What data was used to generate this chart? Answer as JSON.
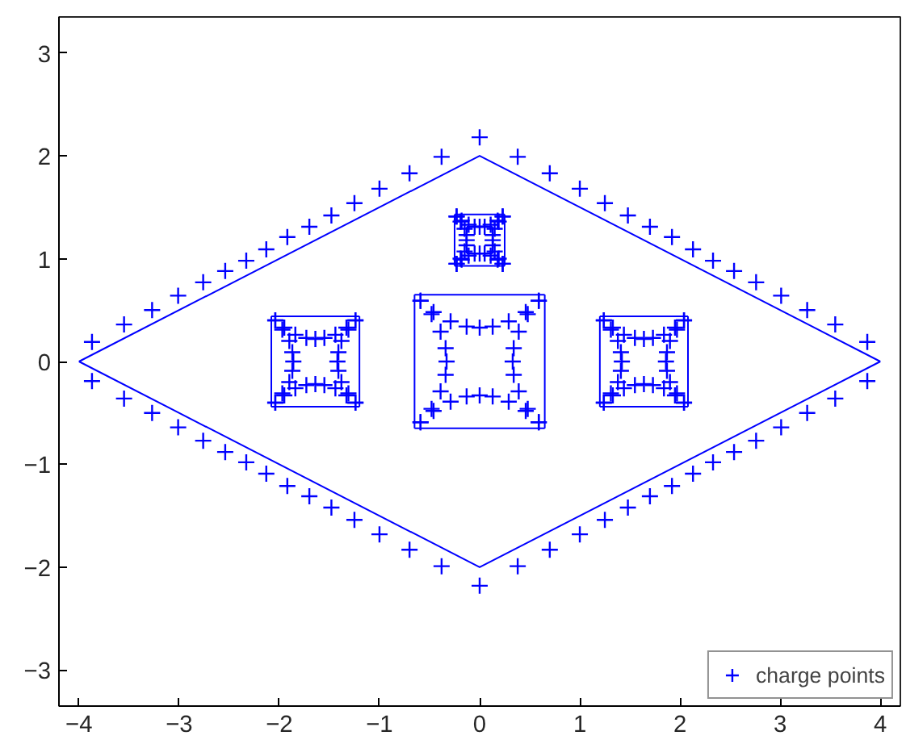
{
  "chart_data": {
    "type": "scatter",
    "xlim": [
      -4.2,
      4.2
    ],
    "ylim": [
      -3.35,
      3.35
    ],
    "xticks": [
      -4,
      -3,
      -2,
      -1,
      0,
      1,
      2,
      3,
      4
    ],
    "yticks": [
      -3,
      -2,
      -1,
      0,
      1,
      2,
      3
    ],
    "legend": "bottom right",
    "marker": "cross",
    "series": [
      {
        "type": "line",
        "marker": "none",
        "color": "#0000ff",
        "x": [
          -4,
          0,
          4
        ],
        "values": [
          0,
          2,
          0
        ]
      },
      {
        "type": "line",
        "marker": "none",
        "color": "#0000ff",
        "x": [
          -4,
          0,
          4
        ],
        "values": [
          0,
          -2,
          0
        ]
      },
      {
        "type": "line",
        "marker": "none",
        "color": "#0000ff",
        "x": [
          -0.65,
          0.65
        ],
        "values": [
          0.65,
          0.65
        ]
      },
      {
        "type": "line",
        "marker": "none",
        "color": "#0000ff",
        "x": [
          -0.65,
          0.65
        ],
        "values": [
          -0.65,
          -0.65
        ]
      },
      {
        "type": "line",
        "marker": "none",
        "color": "#0000ff",
        "x": [
          -0.65,
          -0.65
        ],
        "values": [
          -0.65,
          0.65
        ]
      },
      {
        "type": "line",
        "marker": "none",
        "color": "#0000ff",
        "x": [
          0.65,
          0.65
        ],
        "values": [
          -0.65,
          0.65
        ]
      },
      {
        "type": "line",
        "marker": "none",
        "color": "#0000ff",
        "x": [
          -2.08,
          -1.2
        ],
        "values": [
          0.44,
          0.44
        ]
      },
      {
        "type": "line",
        "marker": "none",
        "color": "#0000ff",
        "x": [
          -2.08,
          -1.2
        ],
        "values": [
          -0.44,
          -0.44
        ]
      },
      {
        "type": "line",
        "marker": "none",
        "color": "#0000ff",
        "x": [
          -2.08,
          -2.08
        ],
        "values": [
          -0.44,
          0.44
        ]
      },
      {
        "type": "line",
        "marker": "none",
        "color": "#0000ff",
        "x": [
          -1.2,
          -1.2
        ],
        "values": [
          -0.44,
          0.44
        ]
      },
      {
        "type": "line",
        "marker": "none",
        "color": "#0000ff",
        "x": [
          1.2,
          2.08
        ],
        "values": [
          0.44,
          0.44
        ]
      },
      {
        "type": "line",
        "marker": "none",
        "color": "#0000ff",
        "x": [
          1.2,
          2.08
        ],
        "values": [
          -0.44,
          -0.44
        ]
      },
      {
        "type": "line",
        "marker": "none",
        "color": "#0000ff",
        "x": [
          1.2,
          1.2
        ],
        "values": [
          -0.44,
          0.44
        ]
      },
      {
        "type": "line",
        "marker": "none",
        "color": "#0000ff",
        "x": [
          2.08,
          2.08
        ],
        "values": [
          -0.44,
          0.44
        ]
      },
      {
        "type": "line",
        "marker": "none",
        "color": "#0000ff",
        "x": [
          -0.25,
          0.25
        ],
        "values": [
          1.43,
          1.43
        ]
      },
      {
        "type": "line",
        "marker": "none",
        "color": "#0000ff",
        "x": [
          -0.25,
          0.25
        ],
        "values": [
          0.93,
          0.93
        ]
      },
      {
        "type": "line",
        "marker": "none",
        "color": "#0000ff",
        "x": [
          -0.25,
          -0.25
        ],
        "values": [
          0.93,
          1.43
        ]
      },
      {
        "type": "line",
        "marker": "none",
        "color": "#0000ff",
        "x": [
          0.25,
          0.25
        ],
        "values": [
          0.93,
          1.43
        ]
      },
      {
        "name": "charge points",
        "color": "#0000ff",
        "x": [
          -3.87,
          -3.55,
          -3.27,
          -3.01,
          -2.76,
          -2.54,
          -2.33,
          -2.13,
          -1.92,
          -1.7,
          -1.48,
          -1.25,
          -1.0,
          -0.7,
          -0.38,
          0,
          0.38,
          0.7,
          1.0,
          1.25,
          1.48,
          1.7,
          1.92,
          2.13,
          2.33,
          2.54,
          2.76,
          3.01,
          3.27,
          3.55,
          3.87,
          3.87,
          3.55,
          3.27,
          3.01,
          2.76,
          2.54,
          2.33,
          2.13,
          1.92,
          1.7,
          1.48,
          1.25,
          1.0,
          0.7,
          0.38,
          0,
          -0.38,
          -0.7,
          -1.0,
          -1.25,
          -1.48,
          -1.7,
          -1.92,
          -2.13,
          -2.33,
          -2.54,
          -2.76,
          -3.01,
          -3.27,
          -3.55,
          -3.87,
          -0.59,
          -0.46,
          -0.29,
          -0.13,
          0,
          0.13,
          0.29,
          0.46,
          0.59,
          -0.59,
          -0.46,
          -0.29,
          -0.13,
          0,
          0.13,
          0.29,
          0.46,
          0.59,
          -0.59,
          -0.48,
          -0.39,
          -0.34,
          -0.33,
          -0.34,
          -0.39,
          -0.48,
          -0.59,
          0.59,
          0.48,
          0.39,
          0.34,
          0.33,
          0.34,
          0.39,
          0.48,
          0.59,
          -2.04,
          -1.95,
          -1.84,
          -1.73,
          -1.64,
          -1.55,
          -1.44,
          -1.33,
          -1.24,
          -2.04,
          -1.95,
          -1.84,
          -1.73,
          -1.64,
          -1.55,
          -1.44,
          -1.33,
          -1.24,
          -2.04,
          -1.97,
          -1.9,
          -1.87,
          -1.86,
          -1.87,
          -1.9,
          -1.97,
          -2.04,
          -1.24,
          -1.31,
          -1.38,
          -1.41,
          -1.42,
          -1.41,
          -1.38,
          -1.31,
          -1.24,
          2.04,
          1.95,
          1.84,
          1.73,
          1.64,
          1.55,
          1.44,
          1.33,
          1.24,
          2.04,
          1.95,
          1.84,
          1.73,
          1.64,
          1.55,
          1.44,
          1.33,
          1.24,
          2.04,
          1.97,
          1.9,
          1.87,
          1.86,
          1.87,
          1.9,
          1.97,
          2.04,
          1.24,
          1.31,
          1.38,
          1.41,
          1.42,
          1.41,
          1.38,
          1.31,
          1.24,
          -0.23,
          -0.18,
          -0.11,
          -0.05,
          0,
          0.05,
          0.11,
          0.18,
          0.23,
          -0.23,
          -0.18,
          -0.11,
          -0.05,
          0,
          0.05,
          0.11,
          0.18,
          0.23,
          -0.23,
          -0.19,
          -0.15,
          -0.13,
          -0.13,
          -0.13,
          -0.15,
          -0.19,
          -0.23,
          0.23,
          0.19,
          0.15,
          0.13,
          0.13,
          0.13,
          0.15,
          0.19,
          0.23
        ],
        "values": [
          0.19,
          0.36,
          0.5,
          0.64,
          0.77,
          0.88,
          0.98,
          1.09,
          1.21,
          1.31,
          1.42,
          1.54,
          1.68,
          1.83,
          1.99,
          2.18,
          1.99,
          1.83,
          1.68,
          1.54,
          1.42,
          1.31,
          1.21,
          1.09,
          0.98,
          0.88,
          0.77,
          0.64,
          0.5,
          0.36,
          0.19,
          -0.19,
          -0.36,
          -0.5,
          -0.64,
          -0.77,
          -0.88,
          -0.98,
          -1.09,
          -1.21,
          -1.31,
          -1.42,
          -1.54,
          -1.68,
          -1.83,
          -1.99,
          -2.18,
          -1.99,
          -1.83,
          -1.68,
          -1.54,
          -1.42,
          -1.31,
          -1.21,
          -1.09,
          -0.98,
          -0.88,
          -0.77,
          -0.64,
          -0.5,
          -0.36,
          -0.19,
          0.59,
          0.48,
          0.39,
          0.34,
          0.33,
          0.34,
          0.39,
          0.48,
          0.59,
          -0.59,
          -0.48,
          -0.39,
          -0.34,
          -0.33,
          -0.34,
          -0.39,
          -0.48,
          -0.59,
          -0.59,
          -0.46,
          -0.29,
          -0.13,
          0,
          0.13,
          0.29,
          0.46,
          0.59,
          -0.59,
          -0.46,
          -0.29,
          -0.13,
          0,
          0.13,
          0.29,
          0.46,
          0.59,
          0.4,
          0.33,
          0.26,
          0.23,
          0.22,
          0.23,
          0.26,
          0.33,
          0.4,
          -0.4,
          -0.33,
          -0.26,
          -0.23,
          -0.22,
          -0.23,
          -0.26,
          -0.33,
          -0.4,
          -0.4,
          -0.31,
          -0.2,
          -0.09,
          0,
          0.09,
          0.2,
          0.31,
          0.4,
          -0.4,
          -0.31,
          -0.2,
          -0.09,
          0,
          0.09,
          0.2,
          0.31,
          0.4,
          0.4,
          0.33,
          0.26,
          0.23,
          0.22,
          0.23,
          0.26,
          0.33,
          0.4,
          -0.4,
          -0.33,
          -0.26,
          -0.23,
          -0.22,
          -0.23,
          -0.26,
          -0.33,
          -0.4,
          -0.4,
          -0.31,
          -0.2,
          -0.09,
          0,
          0.09,
          0.2,
          0.31,
          0.4,
          -0.4,
          -0.31,
          -0.2,
          -0.09,
          0,
          0.09,
          0.2,
          0.31,
          0.4,
          1.41,
          1.37,
          1.33,
          1.31,
          1.31,
          1.31,
          1.33,
          1.37,
          1.41,
          0.95,
          0.99,
          1.03,
          1.05,
          1.05,
          1.05,
          1.03,
          0.99,
          0.95,
          0.95,
          1.0,
          1.07,
          1.13,
          1.18,
          1.23,
          1.29,
          1.36,
          1.41,
          0.95,
          1.0,
          1.07,
          1.13,
          1.18,
          1.23,
          1.29,
          1.36,
          1.41
        ]
      }
    ]
  }
}
